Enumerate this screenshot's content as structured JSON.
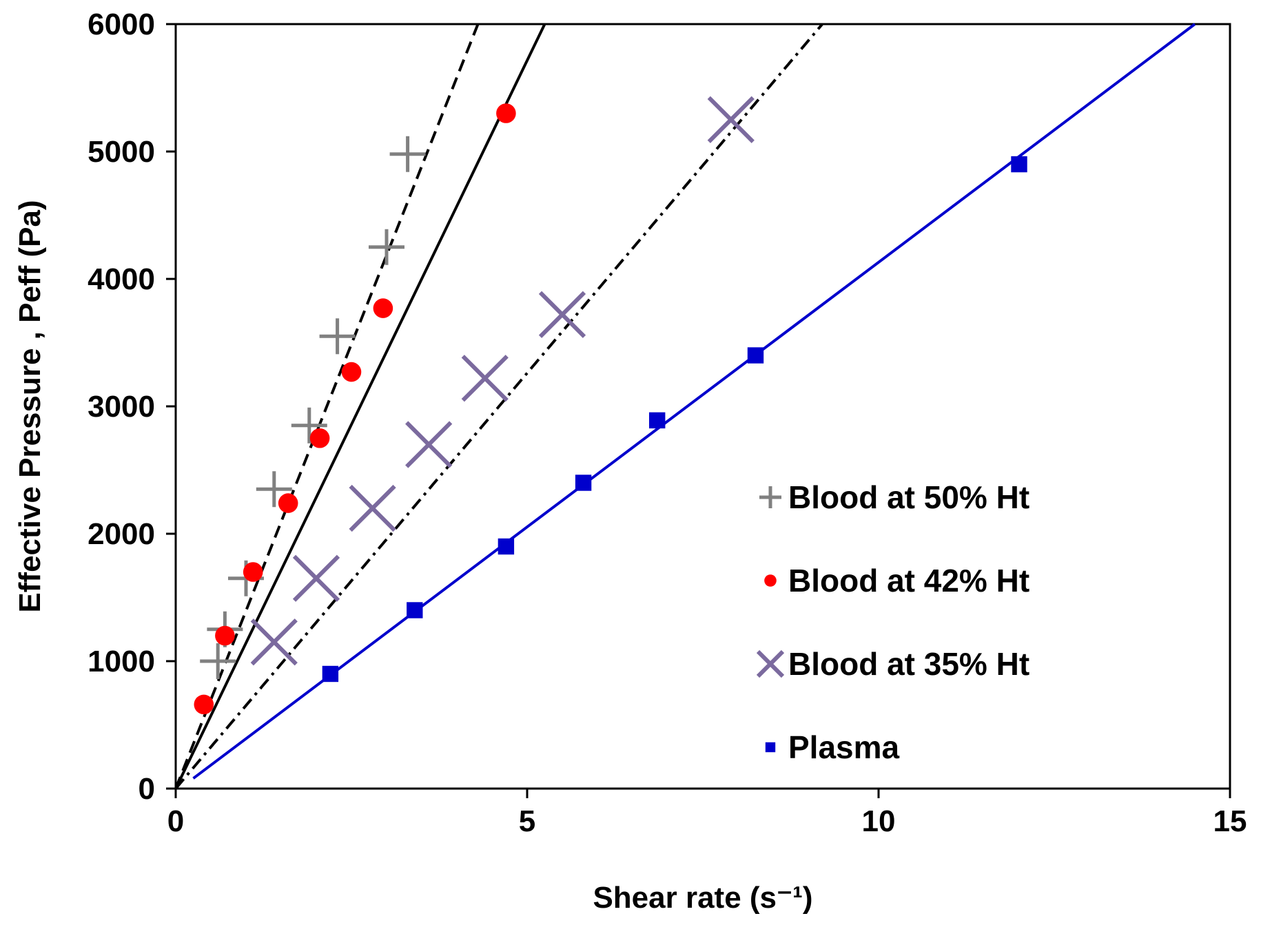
{
  "chart_data": {
    "type": "scatter",
    "xlabel": "Shear rate (s⁻¹)",
    "ylabel": "Effective Pressure , Peff (Pa)",
    "xlim": [
      0,
      15
    ],
    "ylim": [
      0,
      6000
    ],
    "x_ticks": [
      "0",
      "5",
      "10",
      "15"
    ],
    "y_ticks": [
      "0",
      "1000",
      "2000",
      "3000",
      "4000",
      "5000",
      "6000"
    ],
    "grid": false,
    "legend_position": "right",
    "series": [
      {
        "name": "Blood at 50% Ht",
        "marker": "plus",
        "color": "#808080",
        "x": [
          0.6,
          0.7,
          1.0,
          1.4,
          1.9,
          2.3,
          3.0,
          3.3
        ],
        "y": [
          1000,
          1250,
          1650,
          2350,
          2850,
          3550,
          4250,
          4980
        ]
      },
      {
        "name": "Blood at 42% Ht",
        "marker": "circle",
        "color": "#ff0000",
        "x": [
          0.4,
          0.7,
          1.1,
          1.6,
          2.05,
          2.5,
          2.95,
          4.7
        ],
        "y": [
          660,
          1200,
          1700,
          2240,
          2750,
          3270,
          3770,
          5300
        ]
      },
      {
        "name": "Blood at 35% Ht",
        "marker": "x",
        "color": "#7b6a9e",
        "x": [
          1.4,
          2.0,
          2.8,
          3.6,
          4.4,
          5.5,
          7.9
        ],
        "y": [
          1150,
          1650,
          2200,
          2700,
          3220,
          3720,
          5250
        ]
      },
      {
        "name": "Plasma",
        "marker": "square",
        "color": "#0000cc",
        "x": [
          2.2,
          3.4,
          4.7,
          5.8,
          6.85,
          8.25,
          12.0
        ],
        "y": [
          900,
          1400,
          1900,
          2400,
          2890,
          3400,
          4900
        ]
      }
    ],
    "fits": [
      {
        "series": "Blood at 50% Ht",
        "style": "dashed",
        "color": "#000000",
        "x": [
          0,
          4.3
        ],
        "y": [
          0,
          6000
        ]
      },
      {
        "series": "Blood at 42% Ht",
        "style": "solid",
        "color": "#000000",
        "x": [
          0,
          5.25
        ],
        "y": [
          0,
          6000
        ]
      },
      {
        "series": "Blood at 35% Ht",
        "style": "dash-dot",
        "color": "#000000",
        "x": [
          0,
          9.2
        ],
        "y": [
          0,
          6000
        ]
      },
      {
        "series": "Plasma",
        "style": "solid",
        "color": "#0000cc",
        "x": [
          0.25,
          14.5
        ],
        "y": [
          80,
          6000
        ]
      }
    ]
  }
}
